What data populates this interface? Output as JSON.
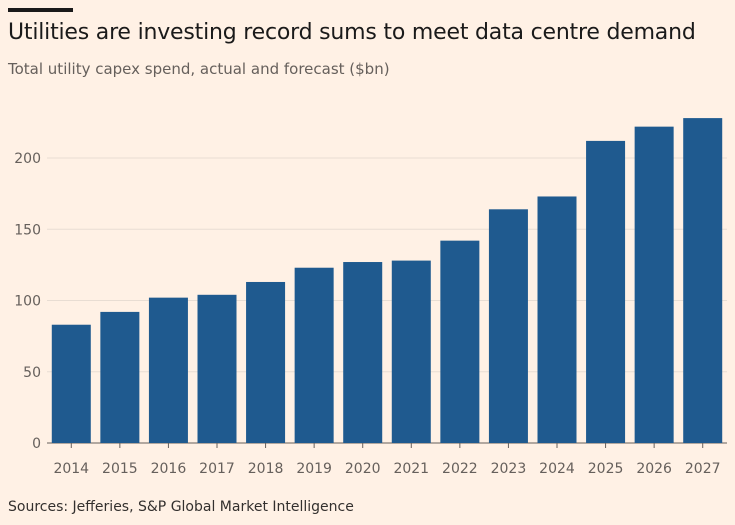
{
  "title": "Utilities are investing record sums to meet data centre demand",
  "subtitle": "Total utility capex spend, actual and forecast ($bn)",
  "source": "Sources: Jefferies, S&P Global Market Intelligence",
  "colors": {
    "background": "#fff1e5",
    "bar": "#1f5a8f",
    "grid": "#e8ddd3",
    "axis_text": "#66605c"
  },
  "chart_data": {
    "type": "bar",
    "title": "Utilities are investing record sums to meet data centre demand",
    "subtitle": "Total utility capex spend, actual and forecast ($bn)",
    "xlabel": "",
    "ylabel": "",
    "categories": [
      "2014",
      "2015",
      "2016",
      "2017",
      "2018",
      "2019",
      "2020",
      "2021",
      "2022",
      "2023",
      "2024",
      "2025",
      "2026",
      "2027"
    ],
    "values": [
      83,
      92,
      102,
      104,
      113,
      123,
      127,
      128,
      142,
      164,
      173,
      212,
      222,
      228
    ],
    "ylim": [
      0,
      230
    ],
    "yticks": [
      0,
      50,
      100,
      150,
      200
    ],
    "grid": true,
    "legend": "none"
  }
}
